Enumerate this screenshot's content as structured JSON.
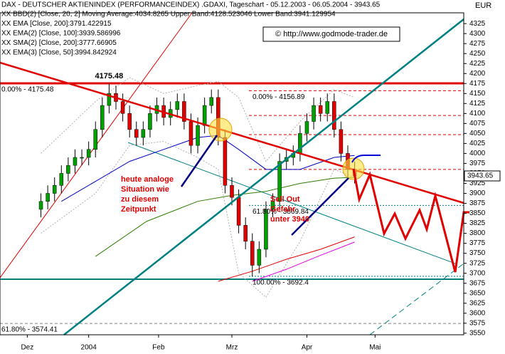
{
  "chart_data": {
    "type": "candlestick",
    "title": "DAX - DEUTSCHER AKTIENINDEX (PERFORMANCEINDEX) .GDAXI, Tageschart - 05.12.2003 - 06.05.2004 - 3943.65",
    "currency": "EUR",
    "copyright": "© http://www.godmode-trader.de",
    "xlim": [
      -8,
      128
    ],
    "xticks": [
      {
        "value": 0,
        "label": "Dez"
      },
      {
        "value": 18,
        "label": "2004"
      },
      {
        "value": 38.5,
        "label": "Feb"
      },
      {
        "value": 60,
        "label": "Mrz"
      },
      {
        "value": 82,
        "label": "Apr"
      },
      {
        "value": 102,
        "label": "Mai"
      }
    ],
    "ylim": [
      3546,
      4352
    ],
    "yticks": [
      3550,
      3575,
      3600,
      3625,
      3650,
      3675,
      3700,
      3725,
      3750,
      3775,
      3800,
      3825,
      3850,
      3875,
      3900,
      3925,
      3950,
      3975,
      4000,
      4025,
      4050,
      4075,
      4100,
      4125,
      4150,
      4175,
      4200,
      4225,
      4250,
      4275,
      4300,
      4325
    ],
    "candles": {
      "up_color": "#00a000",
      "down_color": "#e00000",
      "x": [
        4,
        6,
        8,
        10,
        12,
        14,
        16,
        18,
        20,
        22,
        24,
        26,
        28,
        30,
        32,
        34,
        36,
        38,
        40,
        42,
        44,
        46,
        48,
        50,
        52,
        54,
        56,
        58,
        60,
        62,
        64,
        66,
        68,
        70,
        72,
        74,
        76,
        78,
        80,
        82,
        84,
        86,
        88,
        90,
        92,
        94,
        96
      ],
      "open": [
        3860,
        3880,
        3900,
        3920,
        3950,
        3970,
        3990,
        3990,
        4010,
        4060,
        4120,
        4150,
        4130,
        4100,
        4060,
        4040,
        4060,
        4100,
        4120,
        4090,
        4110,
        4130,
        4080,
        4020,
        4070,
        4120,
        4140,
        4040,
        3920,
        3890,
        3820,
        3780,
        3720,
        3760,
        3860,
        3880,
        3980,
        3990,
        4000,
        4050,
        4080,
        4120,
        4100,
        4130,
        4060,
        4000,
        3960
      ],
      "high": [
        3900,
        3920,
        3940,
        3970,
        3990,
        4010,
        4010,
        4030,
        4080,
        4140,
        4175.48,
        4170,
        4150,
        4120,
        4080,
        4080,
        4120,
        4140,
        4140,
        4130,
        4150,
        4150,
        4100,
        4090,
        4140,
        4160,
        4160,
        4060,
        3940,
        3910,
        3840,
        3800,
        3780,
        3880,
        3900,
        4000,
        4010,
        4020,
        4070,
        4100,
        4140,
        4140,
        4150,
        4150,
        4080,
        4020,
        3980
      ],
      "low": [
        3840,
        3860,
        3880,
        3900,
        3930,
        3950,
        3970,
        3970,
        3990,
        4040,
        4100,
        4110,
        4080,
        4040,
        4020,
        4020,
        4040,
        4080,
        4070,
        4070,
        4090,
        4060,
        4000,
        4000,
        4050,
        4100,
        4020,
        3900,
        3870,
        3800,
        3760,
        3692.4,
        3700,
        3740,
        3840,
        3860,
        3960,
        3970,
        3980,
        4030,
        4060,
        4080,
        4080,
        4040,
        3980,
        3940,
        3925
      ],
      "close": [
        3880,
        3900,
        3920,
        3950,
        3970,
        3990,
        3990,
        4010,
        4060,
        4120,
        4150,
        4130,
        4100,
        4060,
        4040,
        4060,
        4100,
        4120,
        4090,
        4110,
        4130,
        4080,
        4020,
        4070,
        4120,
        4140,
        4040,
        3920,
        3890,
        3820,
        3780,
        3720,
        3760,
        3860,
        3880,
        3980,
        3990,
        4000,
        4050,
        4080,
        4120,
        4100,
        4130,
        4060,
        4000,
        3960,
        3943.65
      ]
    },
    "bands": {
      "name": "XX BBD(2) [Close, 20, 2] Moving Average:4034.8265 Upper Band:4128.523046 Lower Band:3941.129954",
      "color": "#b0b0b0",
      "x": [
        4,
        20,
        30,
        40,
        50,
        56,
        62,
        70,
        80,
        90,
        96
      ],
      "upper": [
        4000,
        4130,
        4190,
        4150,
        4170,
        4180,
        4140,
        3980,
        4080,
        4160,
        4140
      ],
      "lower": [
        3800,
        3900,
        4020,
        4030,
        3990,
        3960,
        3700,
        3640,
        3780,
        3960,
        3940
      ]
    },
    "series": [
      {
        "name": "XX EMA [Close, 200]:3791.422915",
        "color": "#e00000",
        "x": [
          56,
          66,
          76,
          86,
          96
        ],
        "values": [
          3680,
          3705,
          3735,
          3760,
          3791
        ]
      },
      {
        "name": "XX EMA(2) [Close, 100]:3939.586996",
        "color": "#2e7d00",
        "x": [
          20,
          35,
          50,
          60,
          70,
          80,
          90,
          96
        ],
        "values": [
          3742,
          3830,
          3880,
          3895,
          3905,
          3925,
          3938,
          3940
        ]
      },
      {
        "name": "XX SMA(2) [Close, 200]:3777.66905",
        "color": "#e000e0",
        "x": [
          66,
          76,
          86,
          96
        ],
        "values": [
          3680,
          3710,
          3745,
          3778
        ]
      },
      {
        "name": "XX EMA(3) [Close, 50]:3994.842924",
        "color": "#0000c0",
        "x": [
          10,
          20,
          30,
          40,
          50,
          56,
          62,
          70,
          80,
          90,
          96
        ],
        "values": [
          3880,
          3930,
          3980,
          4010,
          4040,
          4045,
          4010,
          3960,
          3960,
          3990,
          3995
        ]
      }
    ],
    "levels": [
      {
        "value": 4175.48,
        "label": "0.00% - 4175.48",
        "color": "#e00000",
        "style": "thick",
        "anchor": "left"
      },
      {
        "value": 4156.89,
        "label": "0.00% - 4156.89",
        "color": "#e00000",
        "style": "dashed",
        "anchor": "mid"
      },
      {
        "value": 4095,
        "color": "#e00000",
        "style": "dashed"
      },
      {
        "value": 4047,
        "color": "#e00000",
        "style": "dashed"
      },
      {
        "value": 3960,
        "color": "#e00000",
        "style": "dashed"
      },
      {
        "value": 3869.84,
        "label": "61.80% - 3869.84",
        "color": "#008080",
        "style": "dotted",
        "anchor": "mid"
      },
      {
        "value": 3692.4,
        "label": "100.00% - 3692.4",
        "color": "#008080",
        "style": "dotted",
        "anchor": "mid"
      },
      {
        "value": 3574.41,
        "label": "61.80% - 3574.41",
        "color": "#808080",
        "style": "dashed",
        "anchor": "left"
      }
    ],
    "peak": 4175.48,
    "last": 3943.65,
    "notes": [
      {
        "lines": [
          "heute analoge",
          "Situation wie",
          "zu diesem",
          "Zeitpunkt"
        ]
      },
      {
        "lines": [
          "Sell Out",
          "Gefahr",
          "unter 3940"
        ]
      }
    ]
  }
}
